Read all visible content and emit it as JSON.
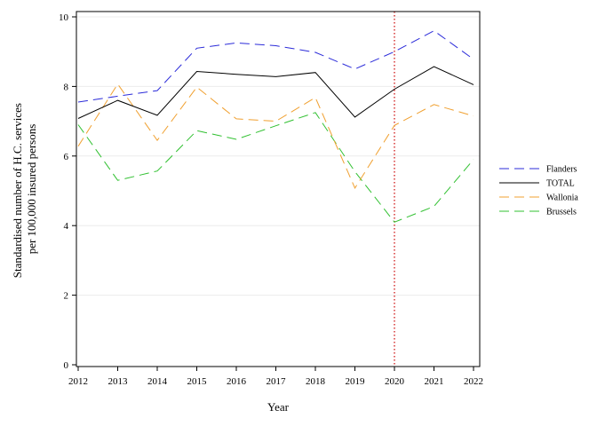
{
  "chart_data": {
    "type": "line",
    "xlabel": "Year",
    "ylabel_lines": [
      "Standardised number of H.C. services",
      "per 100,000 insured persons"
    ],
    "x": [
      2012,
      2013,
      2014,
      2015,
      2016,
      2017,
      2018,
      2019,
      2020,
      2021,
      2022
    ],
    "xlim": [
      2012,
      2022
    ],
    "ylim": [
      0,
      10
    ],
    "yticks": [
      0,
      2,
      4,
      6,
      8,
      10
    ],
    "grid": "horizontal",
    "legend_position": "right",
    "reference_line": {
      "x": 2020,
      "color": "#cc0000",
      "style": "dotted"
    },
    "series": [
      {
        "name": "Flanders",
        "color": "#2b2bd9",
        "dash": "long-dash",
        "values": [
          7.55,
          7.72,
          7.88,
          9.1,
          9.25,
          9.17,
          8.98,
          8.5,
          9.0,
          9.6,
          8.78
        ]
      },
      {
        "name": "TOTAL",
        "color": "#000000",
        "dash": "solid",
        "values": [
          7.08,
          7.6,
          7.17,
          8.43,
          8.35,
          8.28,
          8.4,
          7.12,
          7.92,
          8.57,
          8.05
        ]
      },
      {
        "name": "Wallonia",
        "color": "#f0a030",
        "dash": "long-dash",
        "values": [
          6.28,
          8.07,
          6.45,
          7.98,
          7.07,
          7.0,
          7.68,
          5.08,
          6.88,
          7.48,
          7.15
        ]
      },
      {
        "name": "Brussels",
        "color": "#30c030",
        "dash": "long-dash",
        "values": [
          6.9,
          5.3,
          5.57,
          6.73,
          6.48,
          6.87,
          7.25,
          5.55,
          4.1,
          4.55,
          5.9
        ]
      }
    ]
  }
}
